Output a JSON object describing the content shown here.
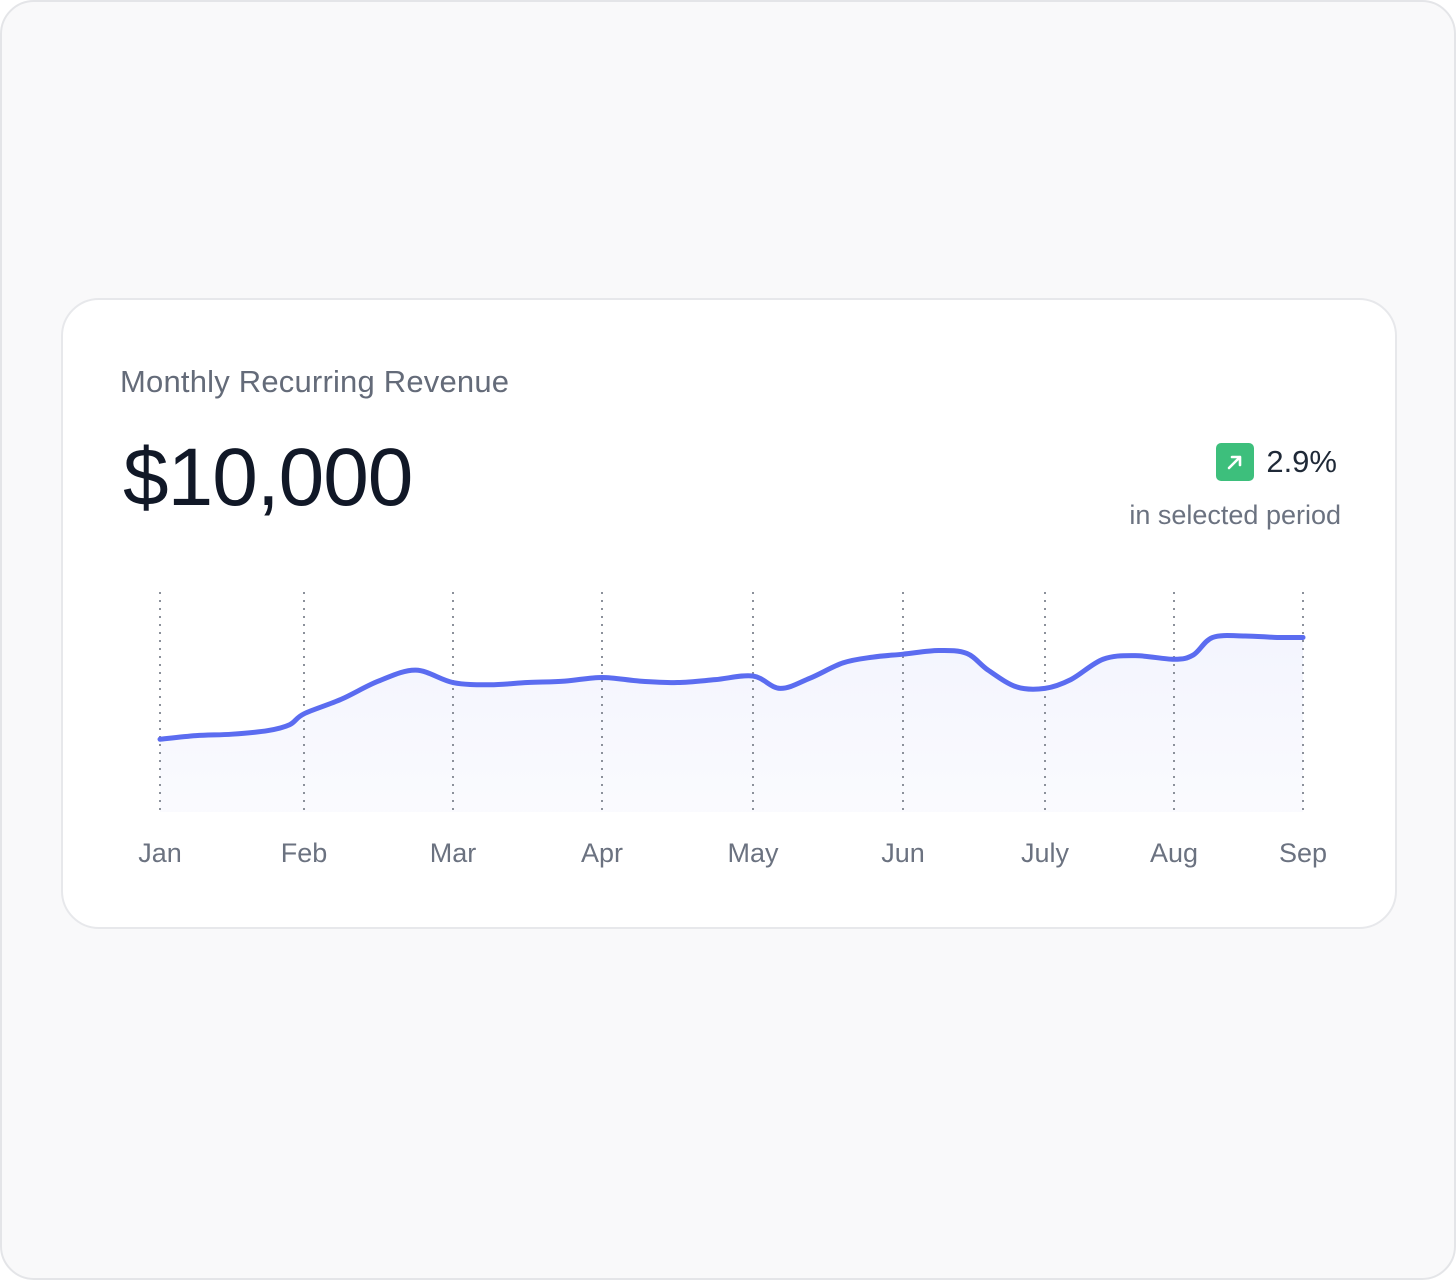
{
  "card": {
    "title": "Monthly Recurring Revenue",
    "value": "$10,000",
    "change": "2.9%",
    "period": "in selected period",
    "accent": "#5b6cf0",
    "positive": "#3dbf7c"
  },
  "chart_data": {
    "type": "line",
    "categories": [
      "Jan",
      "Feb",
      "Mar",
      "Apr",
      "May",
      "Jun",
      "July",
      "Aug",
      "Sep"
    ],
    "x": [
      0.0,
      0.25,
      0.5,
      0.75,
      0.9,
      1.0,
      1.25,
      1.5,
      1.75,
      2.0,
      2.25,
      2.5,
      2.75,
      3.0,
      3.25,
      3.5,
      3.75,
      4.0,
      4.18,
      4.38,
      4.6,
      4.8,
      5.0,
      5.25,
      5.45,
      5.6,
      5.8,
      6.0,
      6.2,
      6.45,
      6.7,
      7.0,
      7.15,
      7.3,
      7.55,
      7.8,
      8.0
    ],
    "values": [
      1.0,
      1.05,
      1.07,
      1.12,
      1.2,
      1.35,
      1.55,
      1.8,
      1.95,
      1.78,
      1.75,
      1.78,
      1.8,
      1.85,
      1.8,
      1.78,
      1.82,
      1.87,
      1.7,
      1.84,
      2.05,
      2.13,
      2.17,
      2.22,
      2.18,
      1.95,
      1.72,
      1.7,
      1.82,
      2.1,
      2.15,
      2.1,
      2.16,
      2.4,
      2.42,
      2.4,
      2.4
    ],
    "title": "Monthly Recurring Revenue",
    "xlabel": "",
    "ylabel": "",
    "ylim": [
      0,
      3.3
    ],
    "grid": "vertical dotted at each month"
  }
}
